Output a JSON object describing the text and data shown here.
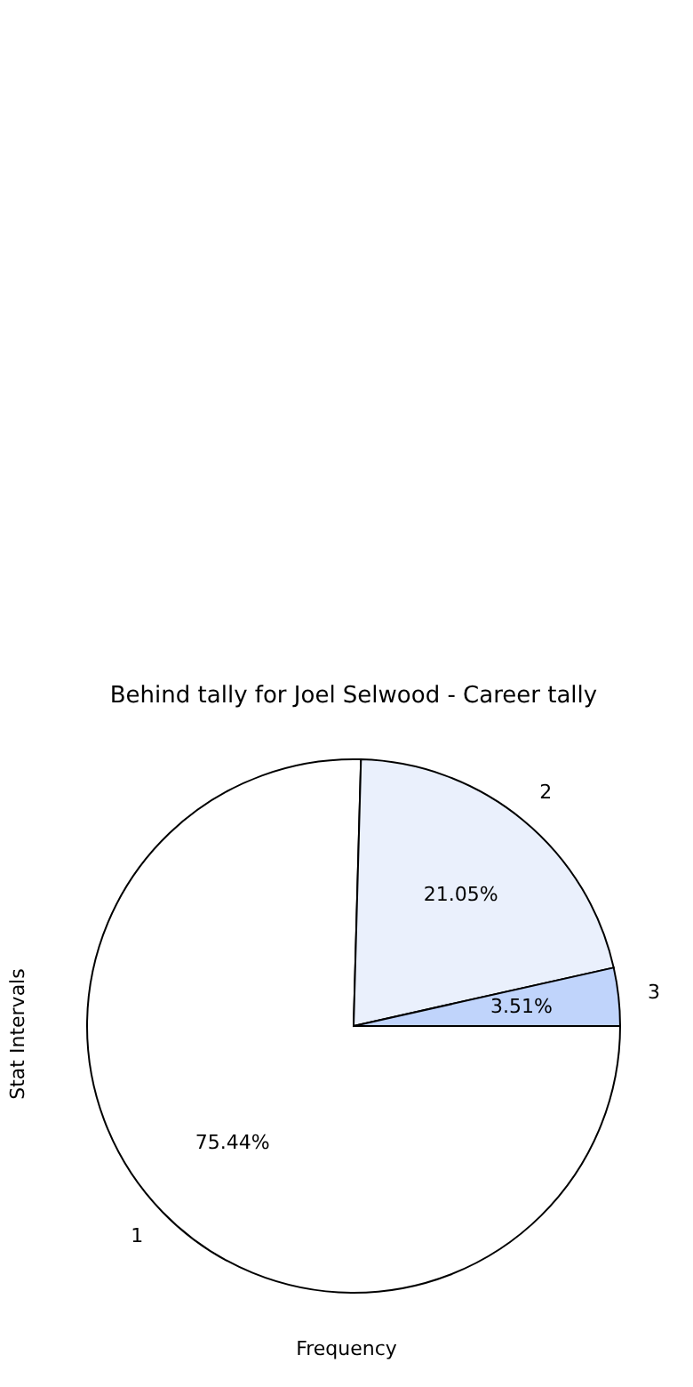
{
  "chart_data": {
    "type": "pie",
    "title": "Behind tally for Joel Selwood - Career tally",
    "xlabel": "Frequency",
    "ylabel": "Stat Intervals",
    "categories": [
      "1",
      "2",
      "3"
    ],
    "values": [
      75.44,
      21.05,
      3.51
    ],
    "colors": [
      "#ffffff",
      "#eaf0fc",
      "#c0d4fb"
    ],
    "value_labels": [
      "75.44%",
      "21.05%",
      "3.51%"
    ]
  }
}
